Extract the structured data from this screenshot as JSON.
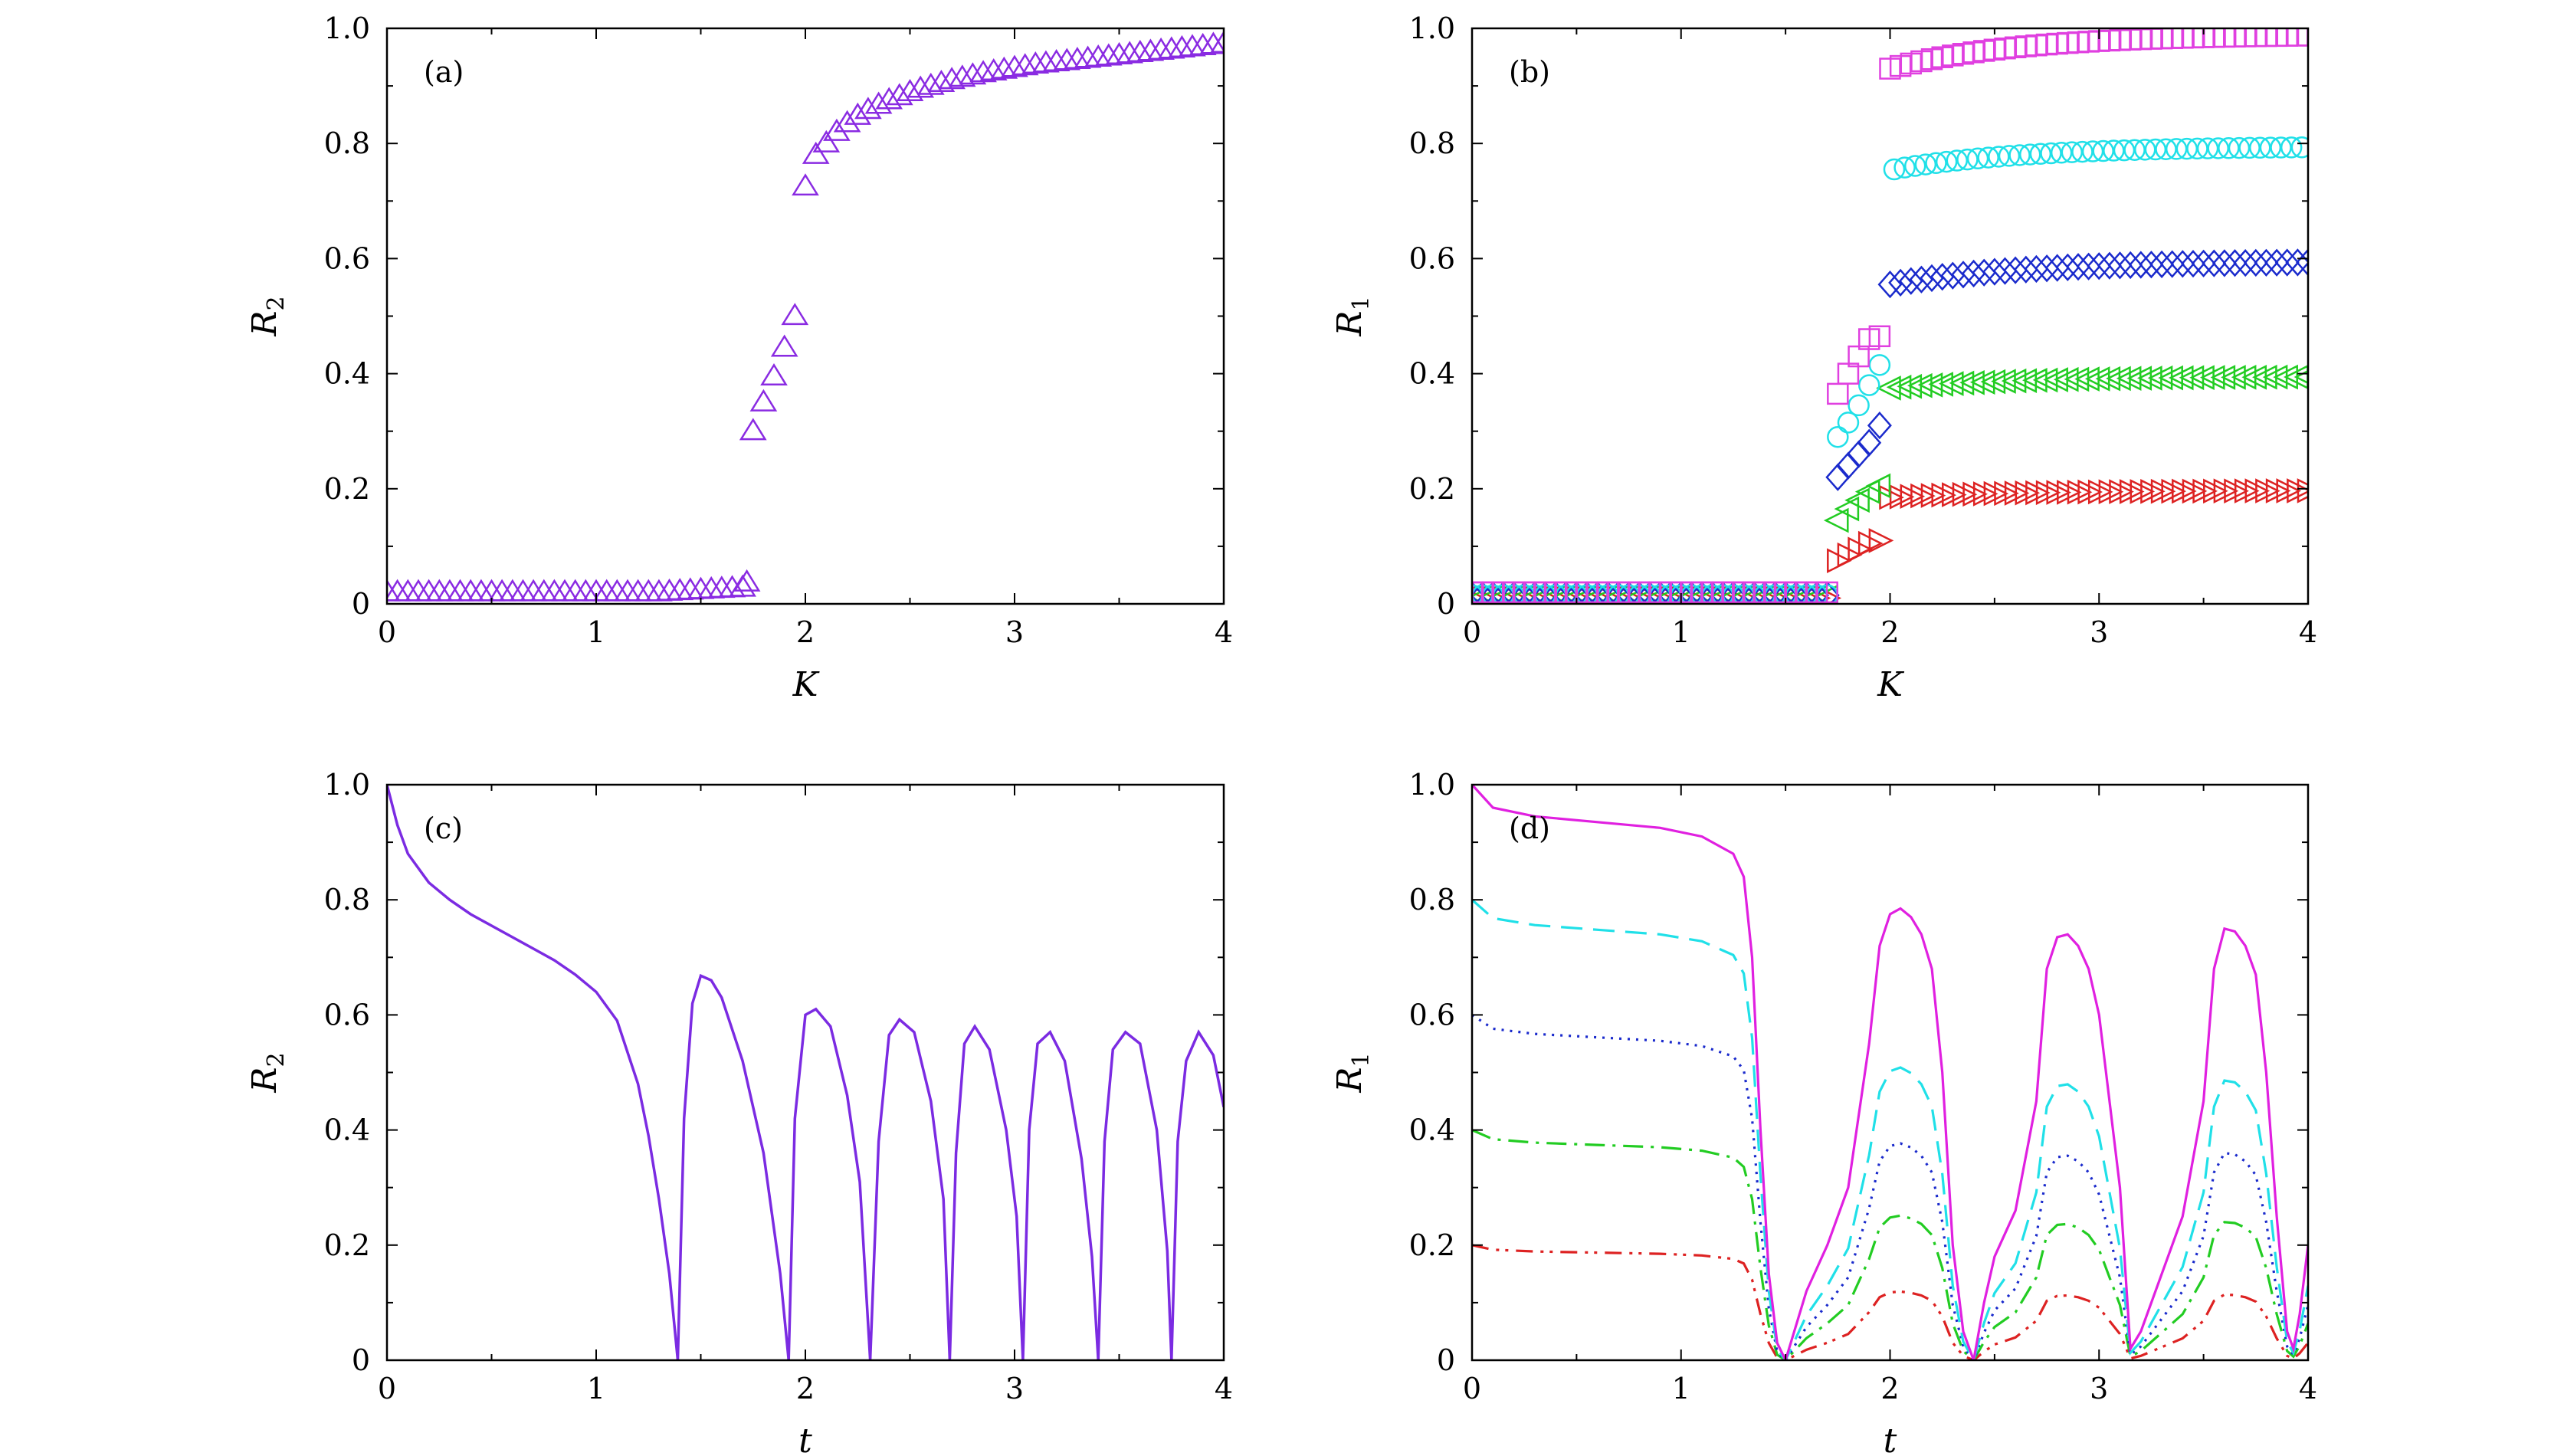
{
  "panels": [
    {
      "id": "a",
      "tag": "(a)",
      "type": "scatter",
      "xlabel": "K",
      "ylabel": "R",
      "ylabel_sub": "2",
      "xlim": [
        0,
        4
      ],
      "ylim": [
        0,
        1.0
      ],
      "xticks": [
        0,
        1,
        2,
        3,
        4
      ],
      "xtick_labels": [
        "0",
        "1",
        "2",
        "3",
        "4"
      ],
      "yticks": [
        0,
        0.2,
        0.4,
        0.6,
        0.8,
        1.0
      ],
      "ytick_labels": [
        "0",
        "0.2",
        "0.4",
        "0.6",
        "0.8",
        "1.0"
      ],
      "series": [
        {
          "marker": "triangle-up",
          "color": "#8a2be2",
          "points": "low-branch K 0..1.7 step 0.05 R 0.02; K 1.72 R 0.037; K 1.75 R 0.30; K 1.8 R 0.35; K 1.85 R 0.395; K 1.9 R 0.445; K 1.95 R 0.50; K 2.0 R 0.725; K 2.05..4.0 saturating to 0.975",
          "x": [
            0,
            0.05,
            0.1,
            0.15,
            0.2,
            0.25,
            0.3,
            0.35,
            0.4,
            0.45,
            0.5,
            0.55,
            0.6,
            0.65,
            0.7,
            0.75,
            0.8,
            0.85,
            0.9,
            0.95,
            1.0,
            1.05,
            1.1,
            1.15,
            1.2,
            1.25,
            1.3,
            1.35,
            1.4,
            1.45,
            1.5,
            1.55,
            1.6,
            1.65,
            1.7,
            1.72,
            1.75,
            1.8,
            1.85,
            1.9,
            1.95,
            2.0,
            2.05,
            2.1,
            2.15,
            2.2,
            2.25,
            2.3,
            2.35,
            2.4,
            2.45,
            2.5,
            2.55,
            2.6,
            2.65,
            2.7,
            2.75,
            2.8,
            2.85,
            2.9,
            2.95,
            3.0,
            3.05,
            3.1,
            3.15,
            3.2,
            3.25,
            3.3,
            3.35,
            3.4,
            3.45,
            3.5,
            3.55,
            3.6,
            3.65,
            3.7,
            3.75,
            3.8,
            3.85,
            3.9,
            3.95,
            4.0
          ],
          "y": [
            0.02,
            0.02,
            0.02,
            0.02,
            0.02,
            0.02,
            0.02,
            0.02,
            0.02,
            0.02,
            0.02,
            0.02,
            0.02,
            0.02,
            0.02,
            0.02,
            0.02,
            0.02,
            0.02,
            0.02,
            0.02,
            0.02,
            0.02,
            0.02,
            0.02,
            0.02,
            0.02,
            0.021,
            0.022,
            0.023,
            0.024,
            0.025,
            0.026,
            0.027,
            0.028,
            0.037,
            0.3,
            0.35,
            0.395,
            0.445,
            0.5,
            0.725,
            0.78,
            0.8,
            0.82,
            0.835,
            0.848,
            0.858,
            0.867,
            0.875,
            0.882,
            0.889,
            0.895,
            0.9,
            0.905,
            0.91,
            0.914,
            0.918,
            0.922,
            0.925,
            0.928,
            0.931,
            0.934,
            0.937,
            0.939,
            0.941,
            0.943,
            0.945,
            0.947,
            0.949,
            0.951,
            0.953,
            0.955,
            0.957,
            0.959,
            0.961,
            0.963,
            0.965,
            0.967,
            0.969,
            0.971,
            0.973
          ]
        }
      ]
    },
    {
      "id": "b",
      "tag": "(b)",
      "type": "scatter",
      "xlabel": "K",
      "ylabel": "R",
      "ylabel_sub": "1",
      "xlim": [
        0,
        4
      ],
      "ylim": [
        0,
        1.0
      ],
      "xticks": [
        0,
        1,
        2,
        3,
        4
      ],
      "xtick_labels": [
        "0",
        "1",
        "2",
        "3",
        "4"
      ],
      "yticks": [
        0,
        0.2,
        0.4,
        0.6,
        0.8,
        1.0
      ],
      "ytick_labels": [
        "0",
        "0.2",
        "0.4",
        "0.6",
        "0.8",
        "1.0"
      ],
      "series": [
        {
          "marker": "square",
          "color": "#e040e0",
          "pre": 0.02,
          "trans_x": [
            1.75,
            1.8,
            1.85,
            1.9,
            1.95
          ],
          "trans_y": [
            0.365,
            0.4,
            0.43,
            0.46,
            0.465
          ],
          "jump_x": 2.0,
          "jump_y": 0.93,
          "sat": 0.99
        },
        {
          "marker": "circle",
          "color": "#20e0e8",
          "pre": 0.015,
          "trans_x": [
            1.75,
            1.8,
            1.85,
            1.9,
            1.95
          ],
          "trans_y": [
            0.29,
            0.315,
            0.345,
            0.38,
            0.415
          ],
          "jump_x": 2.02,
          "jump_y": 0.755,
          "sat": 0.795
        },
        {
          "marker": "diamond",
          "color": "#1a2acc",
          "pre": 0.015,
          "trans_x": [
            1.75,
            1.8,
            1.85,
            1.9,
            1.95
          ],
          "trans_y": [
            0.22,
            0.24,
            0.26,
            0.28,
            0.31
          ],
          "jump_x": 2.0,
          "jump_y": 0.555,
          "sat": 0.595
        },
        {
          "marker": "triangle-left",
          "color": "#22cc22",
          "pre": 0.012,
          "trans_x": [
            1.75,
            1.8,
            1.85,
            1.9,
            1.95
          ],
          "trans_y": [
            0.145,
            0.165,
            0.18,
            0.195,
            0.205
          ],
          "jump_x": 2.0,
          "jump_y": 0.375,
          "sat": 0.395
        },
        {
          "marker": "triangle-right",
          "color": "#dd2222",
          "pre": 0.01,
          "trans_x": [
            1.75,
            1.8,
            1.85,
            1.9,
            1.95
          ],
          "trans_y": [
            0.075,
            0.085,
            0.095,
            0.105,
            0.11
          ],
          "jump_x": 2.0,
          "jump_y": 0.185,
          "sat": 0.197
        }
      ]
    },
    {
      "id": "c",
      "tag": "(c)",
      "type": "line",
      "xlabel": "t",
      "ylabel": "R",
      "ylabel_sub": "2",
      "xlim": [
        0,
        4
      ],
      "ylim": [
        0,
        1.0
      ],
      "xticks": [
        0,
        1,
        2,
        3,
        4
      ],
      "xtick_labels": [
        "0",
        "1",
        "2",
        "3",
        "4"
      ],
      "yticks": [
        0,
        0.2,
        0.4,
        0.6,
        0.8,
        1.0
      ],
      "ytick_labels": [
        "0",
        "0.2",
        "0.4",
        "0.6",
        "0.8",
        "1.0"
      ],
      "series": [
        {
          "color": "#7b2be2",
          "dash": "",
          "x": [
            0,
            0.05,
            0.1,
            0.2,
            0.3,
            0.4,
            0.5,
            0.6,
            0.7,
            0.8,
            0.9,
            1.0,
            1.1,
            1.2,
            1.25,
            1.3,
            1.35,
            1.39,
            1.42,
            1.46,
            1.5,
            1.55,
            1.6,
            1.7,
            1.8,
            1.88,
            1.92,
            1.95,
            2.0,
            2.05,
            2.12,
            2.2,
            2.26,
            2.31,
            2.35,
            2.4,
            2.45,
            2.52,
            2.6,
            2.66,
            2.69,
            2.72,
            2.76,
            2.81,
            2.88,
            2.96,
            3.01,
            3.04,
            3.07,
            3.11,
            3.17,
            3.24,
            3.32,
            3.37,
            3.4,
            3.43,
            3.47,
            3.53,
            3.6,
            3.68,
            3.73,
            3.75,
            3.78,
            3.82,
            3.88,
            3.95,
            4.0
          ],
          "y": [
            1.0,
            0.93,
            0.88,
            0.83,
            0.8,
            0.775,
            0.755,
            0.735,
            0.715,
            0.695,
            0.67,
            0.64,
            0.59,
            0.48,
            0.39,
            0.28,
            0.15,
            0.0,
            0.42,
            0.62,
            0.668,
            0.66,
            0.63,
            0.52,
            0.36,
            0.15,
            0.0,
            0.42,
            0.6,
            0.61,
            0.58,
            0.46,
            0.31,
            0.0,
            0.38,
            0.565,
            0.592,
            0.57,
            0.45,
            0.28,
            0.0,
            0.36,
            0.55,
            0.58,
            0.54,
            0.4,
            0.25,
            0.0,
            0.4,
            0.55,
            0.57,
            0.52,
            0.35,
            0.18,
            0.0,
            0.38,
            0.54,
            0.57,
            0.55,
            0.4,
            0.19,
            0.0,
            0.38,
            0.52,
            0.57,
            0.53,
            0.44
          ]
        }
      ]
    },
    {
      "id": "d",
      "tag": "(d)",
      "type": "line",
      "xlabel": "t",
      "ylabel": "R",
      "ylabel_sub": "1",
      "xlim": [
        0,
        4
      ],
      "ylim": [
        0,
        1.0
      ],
      "xticks": [
        0,
        1,
        2,
        3,
        4
      ],
      "xtick_labels": [
        "0",
        "1",
        "2",
        "3",
        "4"
      ],
      "yticks": [
        0,
        0.2,
        0.4,
        0.6,
        0.8,
        1.0
      ],
      "ytick_labels": [
        "0",
        "0.2",
        "0.4",
        "0.6",
        "0.8",
        "1.0"
      ],
      "series": [
        {
          "color": "#e020e0",
          "dash": "",
          "amp": 1.0,
          "x": [
            0,
            0.1,
            0.3,
            0.6,
            0.9,
            1.1,
            1.25,
            1.3,
            1.34,
            1.38,
            1.42,
            1.46,
            1.5,
            1.6,
            1.7,
            1.8,
            1.9,
            1.95,
            2.0,
            2.05,
            2.1,
            2.15,
            2.2,
            2.25,
            2.3,
            2.35,
            2.4,
            2.45,
            2.5,
            2.6,
            2.7,
            2.75,
            2.8,
            2.85,
            2.9,
            2.95,
            3.0,
            3.1,
            3.15,
            3.2,
            3.3,
            3.4,
            3.5,
            3.55,
            3.6,
            3.65,
            3.7,
            3.75,
            3.8,
            3.85,
            3.9,
            3.93,
            3.96,
            4.0
          ],
          "y": [
            1.0,
            0.96,
            0.945,
            0.935,
            0.925,
            0.91,
            0.88,
            0.84,
            0.7,
            0.4,
            0.15,
            0.03,
            0.0,
            0.12,
            0.2,
            0.3,
            0.55,
            0.72,
            0.775,
            0.785,
            0.77,
            0.74,
            0.68,
            0.5,
            0.2,
            0.05,
            0.0,
            0.1,
            0.18,
            0.26,
            0.45,
            0.68,
            0.735,
            0.74,
            0.72,
            0.68,
            0.6,
            0.3,
            0.02,
            0.05,
            0.15,
            0.25,
            0.45,
            0.68,
            0.75,
            0.745,
            0.72,
            0.67,
            0.5,
            0.25,
            0.05,
            0.02,
            0.08,
            0.2
          ]
        }
      ]
    }
  ],
  "colors": {
    "series_b": [
      "#e040e0",
      "#20e0e8",
      "#1a2acc",
      "#22cc22",
      "#dd2222"
    ],
    "series_d": [
      "#e020e0",
      "#20e0e8",
      "#1a2acc",
      "#22cc22",
      "#dd2222"
    ]
  },
  "chart_data": [
    {
      "type": "scatter",
      "title": "(a)",
      "xlabel": "K",
      "ylabel": "R2",
      "xlim": [
        0,
        4
      ],
      "ylim": [
        0,
        1.0
      ],
      "series": [
        {
          "marker": "triangle",
          "color": "#8a2be2"
        }
      ]
    },
    {
      "type": "scatter",
      "title": "(b)",
      "xlabel": "K",
      "ylabel": "R1",
      "xlim": [
        0,
        4
      ],
      "ylim": [
        0,
        1.0
      ],
      "series": [
        {
          "marker": "square",
          "color": "#e040e0",
          "saturation": 0.99
        },
        {
          "marker": "circle",
          "color": "#20e0e8",
          "saturation": 0.795
        },
        {
          "marker": "diamond",
          "color": "#1a2acc",
          "saturation": 0.595
        },
        {
          "marker": "triangle-left",
          "color": "#22cc22",
          "saturation": 0.395
        },
        {
          "marker": "triangle-right",
          "color": "#dd2222",
          "saturation": 0.197
        }
      ]
    },
    {
      "type": "line",
      "title": "(c)",
      "xlabel": "t",
      "ylabel": "R2",
      "xlim": [
        0,
        4
      ],
      "ylim": [
        0,
        1.0
      ]
    },
    {
      "type": "line",
      "title": "(d)",
      "xlabel": "t",
      "ylabel": "R1",
      "xlim": [
        0,
        4
      ],
      "ylim": [
        0,
        1.0
      ],
      "series": [
        {
          "style": "solid",
          "color": "#e020e0",
          "initial": 1.0
        },
        {
          "style": "dashed",
          "color": "#20e0e8",
          "initial": 0.8
        },
        {
          "style": "dotted",
          "color": "#1a2acc",
          "initial": 0.6
        },
        {
          "style": "dash-dot",
          "color": "#22cc22",
          "initial": 0.4
        },
        {
          "style": "dash-dot-dot",
          "color": "#dd2222",
          "initial": 0.2
        }
      ]
    }
  ]
}
